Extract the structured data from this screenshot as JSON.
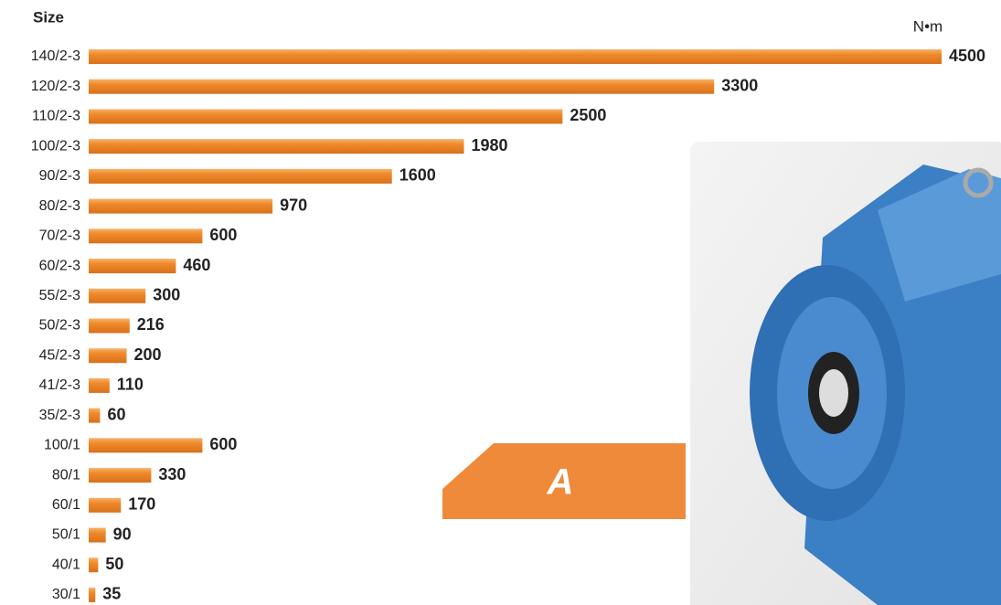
{
  "chart_data": {
    "type": "bar",
    "orientation": "horizontal",
    "title": "Size",
    "unit_label": "N•m",
    "annotation": "A",
    "categories": [
      "140/2-3",
      "120/2-3",
      "110/2-3",
      "100/2-3",
      "90/2-3",
      "80/2-3",
      "70/2-3",
      "60/2-3",
      "55/2-3",
      "50/2-3",
      "45/2-3",
      "41/2-3",
      "35/2-3",
      "100/1",
      "80/1",
      "60/1",
      "50/1",
      "40/1",
      "30/1"
    ],
    "values": [
      4500,
      3300,
      2500,
      1980,
      1600,
      970,
      600,
      460,
      300,
      216,
      200,
      110,
      60,
      600,
      330,
      170,
      90,
      50,
      35
    ],
    "color": "#ef8a2b"
  }
}
